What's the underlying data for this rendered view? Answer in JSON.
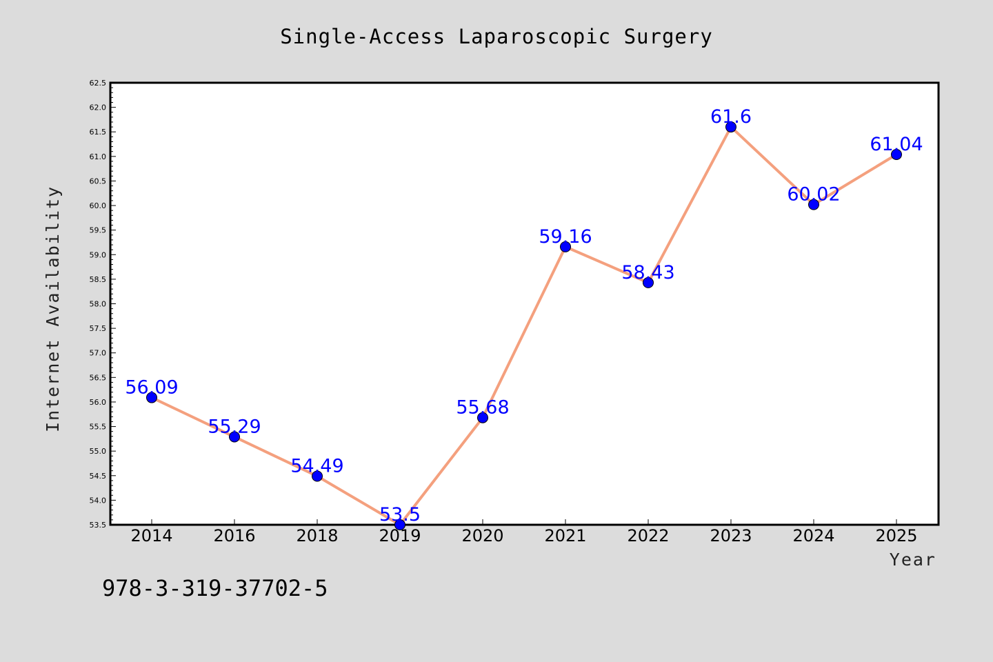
{
  "chart_data": {
    "type": "line",
    "title": "Single-Access Laparoscopic Surgery",
    "xlabel": "Year",
    "ylabel": "Internet Availability",
    "categories": [
      "2014",
      "2016",
      "2018",
      "2019",
      "2020",
      "2021",
      "2022",
      "2023",
      "2024",
      "2025"
    ],
    "series": [
      {
        "values": [
          56.09,
          55.29,
          54.49,
          53.5,
          55.68,
          59.16,
          58.43,
          61.6,
          60.02,
          61.04
        ],
        "data_labels": [
          "56.09",
          "55.29",
          "54.49",
          "53.5",
          "55.68",
          "59.16",
          "58.43",
          "61.6",
          "60.02",
          "61.04"
        ],
        "line_color": "#f4a07e",
        "marker_color": "#0000ff"
      }
    ],
    "ylim": [
      53.5,
      62.5
    ],
    "yticks": [
      "53.5",
      "54.0",
      "54.5",
      "55.0",
      "55.5",
      "56.0",
      "56.5",
      "57.0",
      "57.5",
      "58.0",
      "58.5",
      "59.0",
      "59.5",
      "60.0",
      "60.5",
      "61.0",
      "61.5",
      "62.0",
      "62.5"
    ],
    "grid": false,
    "legend": "none"
  },
  "footnote": "978-3-319-37702-5",
  "colors": {
    "background": "#dcdcdc",
    "plot_area": "#ffffff",
    "frame": "#000000",
    "line": "#f4a07e",
    "marker": "#0000ff",
    "data_label": "#0000ff"
  }
}
